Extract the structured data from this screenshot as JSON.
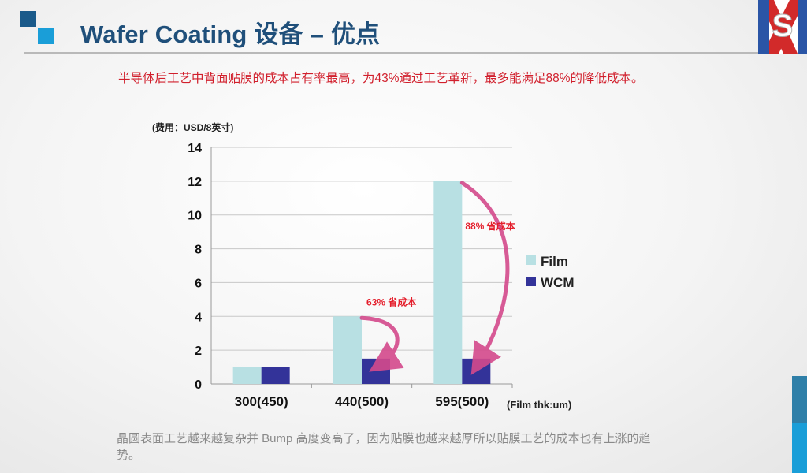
{
  "header": {
    "title": "Wafer Coating 设备 – 优点"
  },
  "intro": {
    "text": "半导体后工艺中背面贴膜的成本占有率最高，为43%通过工艺革新，最多能满足88%的降低成本。"
  },
  "footer": {
    "text": "晶圆表面工艺越来越复杂并 Bump 高度变高了，因为贴膜也越来越厚所以贴膜工艺的成本也有上涨的趋势。"
  },
  "colors": {
    "film": "#b8e0e3",
    "wcm": "#333399",
    "annotation": "#e41e2b",
    "arrow": "#d44a8c",
    "title": "#1f4f7a"
  },
  "chart_data": {
    "type": "bar",
    "ylabel": "(费用：USD/8英寸)",
    "xlabel": "(Film thk:um)",
    "categories": [
      "300(450)",
      "440(500)",
      "595(500)"
    ],
    "series": [
      {
        "name": "Film",
        "values": [
          1,
          4,
          12
        ]
      },
      {
        "name": "WCM",
        "values": [
          1,
          1.5,
          1.5
        ]
      }
    ],
    "ylim": [
      0,
      14
    ],
    "yticks": [
      0,
      2,
      4,
      6,
      8,
      10,
      12,
      14
    ],
    "grid": true,
    "legend": "right",
    "annotations": [
      {
        "text": "63% 省成本",
        "category": "440(500)"
      },
      {
        "text": "88% 省成本",
        "category": "595(500)"
      }
    ]
  }
}
